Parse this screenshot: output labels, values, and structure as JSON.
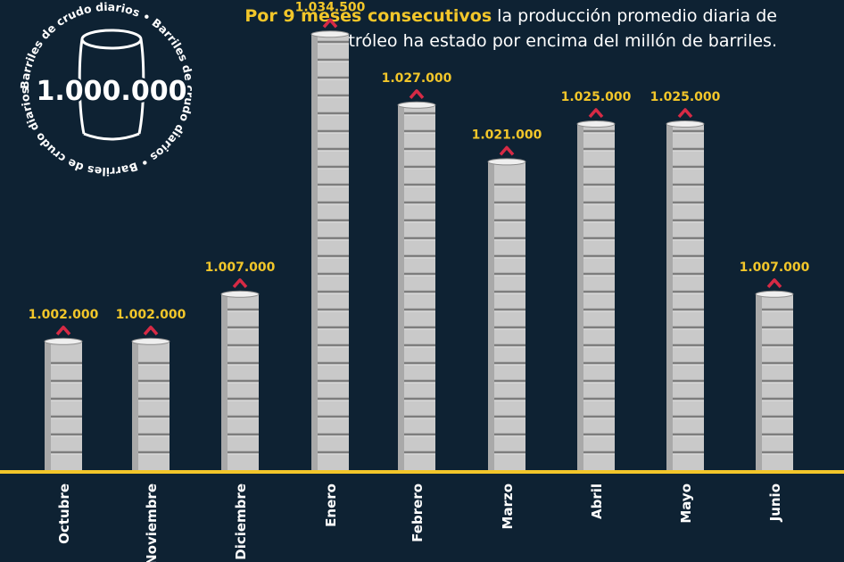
{
  "headline": {
    "highlight": "Por 9 meses consecutivos",
    "rest": " la producción promedio diaria de petróleo ha estado por encima del millón de barriles."
  },
  "seal": {
    "value": "1.000.000",
    "ring_text": "Barriles de crudo diarios • Barriles de crudo diarios • Barriles de crudo diarios •"
  },
  "colors": {
    "background": "#0e2233",
    "highlight": "#f2c62a",
    "barrel": "#c9c9c9",
    "arrow": "#d62a45",
    "baseline": "#f2c62a"
  },
  "chart_data": {
    "type": "bar",
    "categories": [
      "Octubre",
      "Noviembre",
      "Diciembre",
      "Enero",
      "Febrero",
      "Marzo",
      "Abril",
      "Mayo",
      "Junio"
    ],
    "values": [
      1002000,
      1002000,
      1007000,
      1034500,
      1027000,
      1021000,
      1025000,
      1025000,
      1007000
    ],
    "value_labels": [
      "1.002.000",
      "1.002.000",
      "1.007.000",
      "1.034.500",
      "1.027.000",
      "1.021.000",
      "1.025.000",
      "1.025.000",
      "1.007.000"
    ],
    "units": "barriles de crudo diarios",
    "grid": false,
    "legend": "none"
  }
}
